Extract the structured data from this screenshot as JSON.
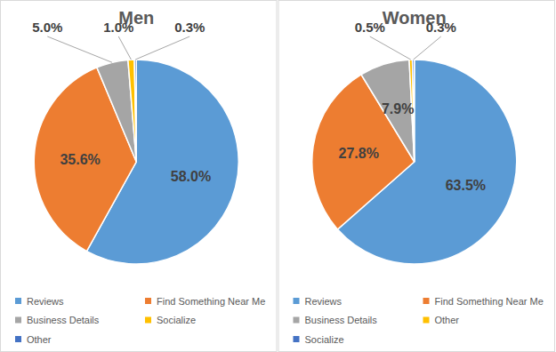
{
  "chart_data": [
    {
      "type": "pie",
      "title": "Men",
      "categories": [
        "Reviews",
        "Find Something Near Me",
        "Business Details",
        "Socialize",
        "Other"
      ],
      "values": [
        58.0,
        35.6,
        5.0,
        1.0,
        0.3
      ],
      "value_labels": [
        "58.0%",
        "35.6%",
        "5.0%",
        "1.0%",
        "0.3%"
      ],
      "colors": [
        "#5b9bd5",
        "#ed7d31",
        "#a5a5a5",
        "#ffc000",
        "#4472c4"
      ],
      "data_labels": true,
      "legend": "bottom"
    },
    {
      "type": "pie",
      "title": "Women",
      "categories": [
        "Reviews",
        "Find Something Near Me",
        "Business Details",
        "Other",
        "Socialize"
      ],
      "values": [
        63.5,
        27.8,
        7.9,
        0.5,
        0.3
      ],
      "value_labels": [
        "63.5%",
        "27.8%",
        "7.9%",
        "0.5%",
        "0.3%"
      ],
      "colors": [
        "#5b9bd5",
        "#ed7d31",
        "#a5a5a5",
        "#ffc000",
        "#4472c4"
      ],
      "data_labels": true,
      "legend": "bottom"
    }
  ]
}
